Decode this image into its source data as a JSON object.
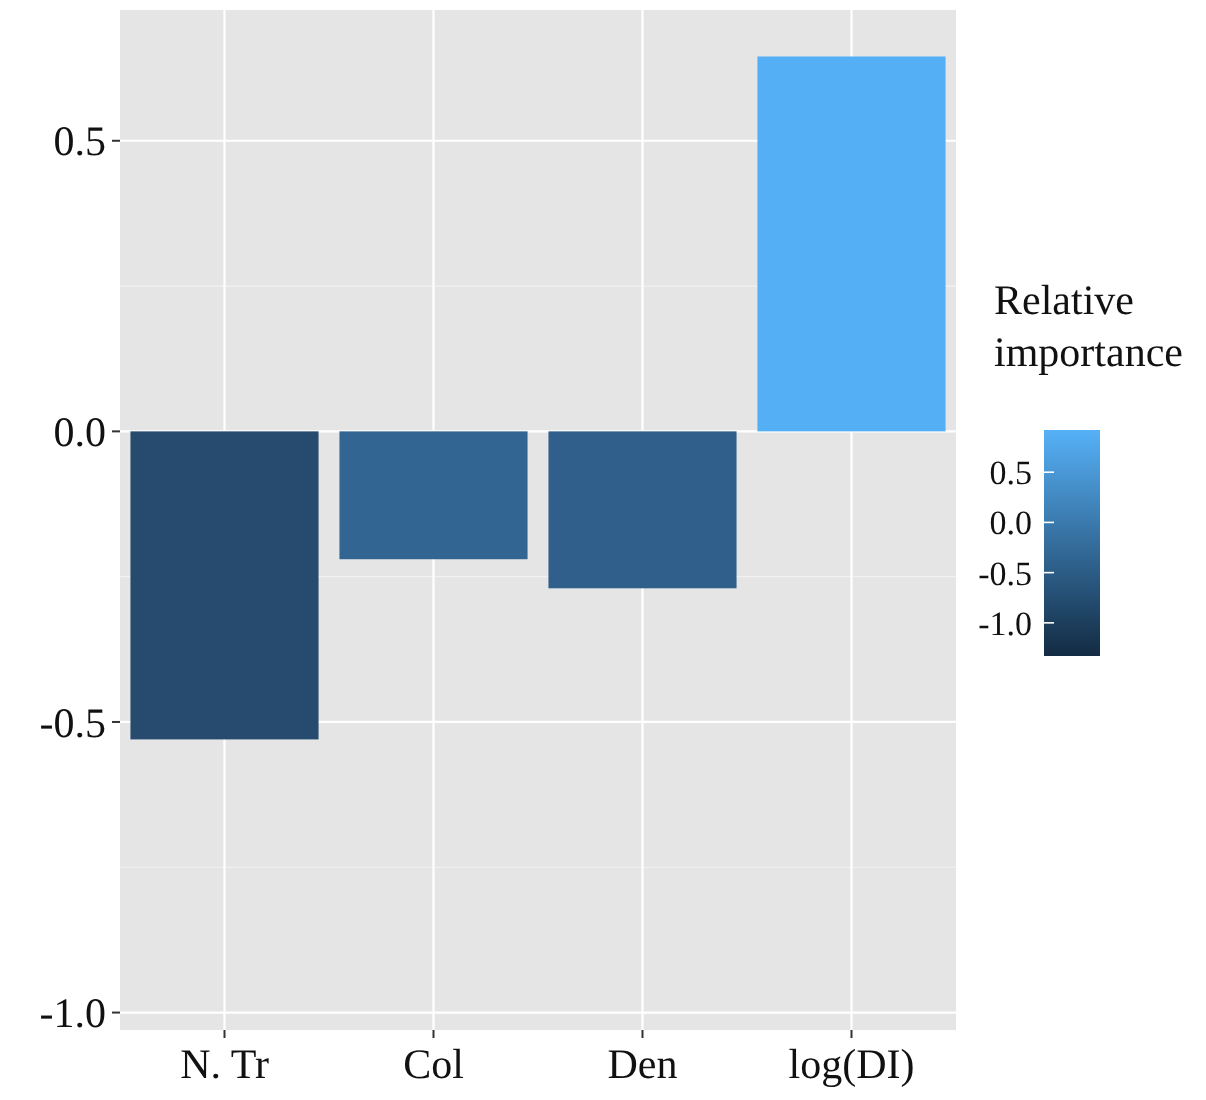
{
  "chart_data": {
    "type": "bar",
    "categories": [
      "N. Tr",
      "Col",
      "Den",
      "log(DI)"
    ],
    "values": [
      -0.53,
      -0.22,
      -0.27,
      0.645
    ],
    "colors": [
      "#264b6f",
      "#326591",
      "#2f5f8a",
      "#54aff5"
    ],
    "ylim": [
      -1.03,
      0.725
    ],
    "yticks": [
      {
        "value": -1,
        "label": "-1.0"
      },
      {
        "value": -0.5,
        "label": "-0.5"
      },
      {
        "value": 0,
        "label": "0.0"
      },
      0.5
    ],
    "grid": true,
    "clabel": "Relative importance",
    "clim": [
      -1.33,
      0.92
    ],
    "cticks": [
      {
        "value": -1,
        "label": "-1.0"
      },
      {
        "value": -0.5,
        "label": "-0.5"
      },
      {
        "value": 0,
        "label": "0.0"
      },
      0.5
    ]
  }
}
